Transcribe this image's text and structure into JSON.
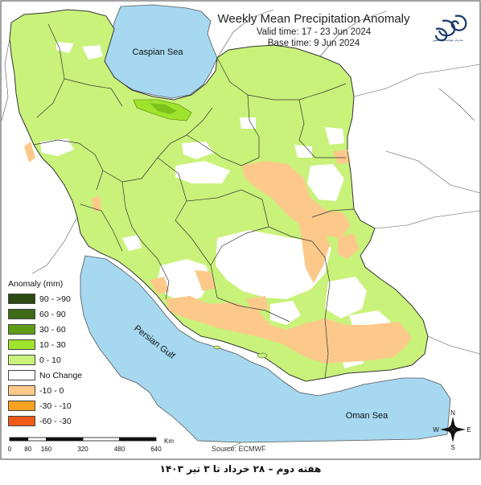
{
  "title": {
    "main": "Weekly Mean Precipitation Anomaly",
    "valid": "Valid time: 17 - 23 Jun 2024",
    "base": "Base time: 9 Jun 2024"
  },
  "labels": {
    "caspian": "Caspian Sea",
    "persian_gulf": "Persian Gulf",
    "oman_sea": "Oman Sea"
  },
  "legend": {
    "title": "Anomaly (mm)",
    "items": [
      {
        "label": "90 - >90",
        "color": "#2b4a12"
      },
      {
        "label": "60 - 90",
        "color": "#3e6b16"
      },
      {
        "label": "30 - 60",
        "color": "#5e9e17"
      },
      {
        "label": "10 - 30",
        "color": "#a0e32c"
      },
      {
        "label": "0 - 10",
        "color": "#c8f27a"
      },
      {
        "label": "No Change",
        "color": "#ffffff"
      },
      {
        "label": "-10 - 0",
        "color": "#fcc98a"
      },
      {
        "label": "-30 - -10",
        "color": "#f7a21e"
      },
      {
        "label": "-60 - -30",
        "color": "#f05a14"
      }
    ]
  },
  "scale": {
    "unit": "Km",
    "ticks": [
      "0",
      "80",
      "160",
      "320",
      "480",
      "640"
    ]
  },
  "source": "Source: ECMWF",
  "compass": {
    "n": "N",
    "s": "S",
    "e": "E",
    "w": "W"
  },
  "logo_text": "سازمان هواشناسی کشور",
  "footer": "هفته دوم – ۲۸ خرداد تا ۳ تیر ۱۴۰۳",
  "colors": {
    "water": "#a6d8f0",
    "land_outside": "#ffffff",
    "border": "#333333"
  }
}
